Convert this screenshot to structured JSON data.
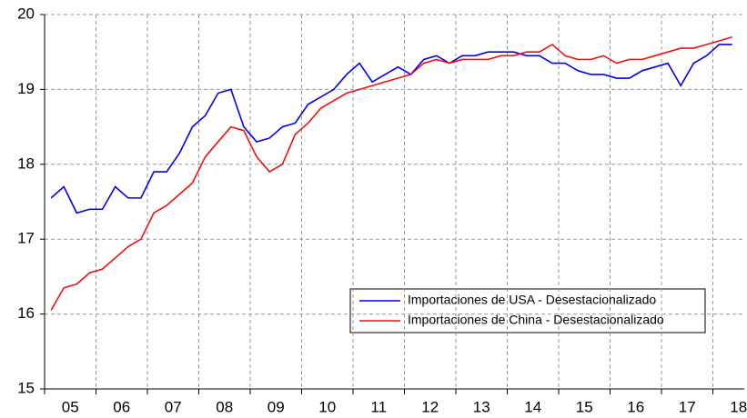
{
  "chart_data": {
    "type": "line",
    "categories": [
      "05",
      null,
      null,
      null,
      "06",
      null,
      null,
      null,
      "07",
      null,
      null,
      null,
      "08",
      null,
      null,
      null,
      "09",
      null,
      null,
      null,
      "10",
      null,
      null,
      null,
      "11",
      null,
      null,
      null,
      "12",
      null,
      null,
      null,
      "13",
      null,
      null,
      null,
      "14",
      null,
      null,
      null,
      "15",
      null,
      null,
      null,
      "16",
      null,
      null,
      null,
      "17",
      null,
      null,
      null,
      "18",
      null
    ],
    "series": [
      {
        "name": "Importaciones de USA - Desestacionalizado",
        "color": "#0000ee",
        "values": [
          17.55,
          17.7,
          17.35,
          17.4,
          17.4,
          17.7,
          17.55,
          17.55,
          17.9,
          17.9,
          18.15,
          18.5,
          18.65,
          18.95,
          19.0,
          18.5,
          18.3,
          18.35,
          18.5,
          18.55,
          18.8,
          18.9,
          19.0,
          19.2,
          19.35,
          19.1,
          19.2,
          19.3,
          19.2,
          19.4,
          19.45,
          19.35,
          19.45,
          19.45,
          19.5,
          19.5,
          19.5,
          19.45,
          19.45,
          19.35,
          19.35,
          19.25,
          19.2,
          19.2,
          19.15,
          19.15,
          19.25,
          19.3,
          19.35,
          19.05,
          19.35,
          19.45,
          19.6,
          19.6
        ]
      },
      {
        "name": "Importaciones de China - Desestacionalizado",
        "color": "#ee1111",
        "values": [
          16.05,
          16.35,
          16.4,
          16.55,
          16.6,
          16.75,
          16.9,
          17.0,
          17.35,
          17.45,
          17.6,
          17.75,
          18.1,
          18.3,
          18.5,
          18.45,
          18.1,
          17.9,
          18.0,
          18.4,
          18.55,
          18.75,
          18.85,
          18.95,
          19.0,
          19.05,
          19.1,
          19.15,
          19.2,
          19.35,
          19.4,
          19.35,
          19.4,
          19.4,
          19.4,
          19.45,
          19.45,
          19.5,
          19.5,
          19.6,
          19.45,
          19.4,
          19.4,
          19.45,
          19.35,
          19.4,
          19.4,
          19.45,
          19.5,
          19.55,
          19.55,
          19.6,
          19.65,
          19.7
        ]
      }
    ],
    "ylim": [
      15,
      20
    ],
    "yticks": [
      15,
      16,
      17,
      18,
      19,
      20
    ],
    "grid": true
  }
}
